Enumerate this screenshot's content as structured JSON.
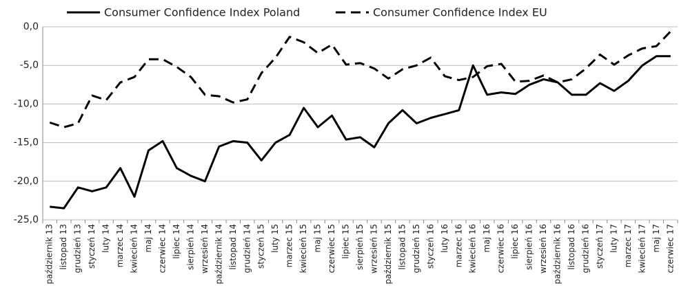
{
  "chart_data": {
    "type": "line",
    "categories": [
      "październik 13",
      "listopad 13",
      "grudzień 13",
      "styczeń 14",
      "luty 14",
      "marzec 14",
      "kwiecień 14",
      "maj 14",
      "czerwiec 14",
      "lipiec 14",
      "sierpień 14",
      "wrzesień 14",
      "październik 14",
      "listopad 14",
      "grudzień 14",
      "styczeń 15",
      "luty 15",
      "marzec 15",
      "kwiecień 15",
      "maj 15",
      "czerwiec 15",
      "lipiec 15",
      "sierpień 15",
      "wrzesień 15",
      "październik 15",
      "listopad 15",
      "grudzień 15",
      "styczeń 16",
      "luty 16",
      "marzec 16",
      "kwiecień 16",
      "maj 16",
      "czerwiec 16",
      "lipiec 16",
      "sierpień 16",
      "wrzesień 16",
      "październik 16",
      "listopad 16",
      "grudzień 16",
      "styczeń 17",
      "luty 17",
      "marzec 17",
      "kwiecień 17",
      "maj 17",
      "czerwiec 17"
    ],
    "series": [
      {
        "name": "Consumer Confidence Index Poland",
        "color": "#000000",
        "line_style": "solid",
        "values": [
          -23.3,
          -23.5,
          -20.8,
          -21.3,
          -20.8,
          -18.3,
          -22.0,
          -16.0,
          -14.8,
          -18.3,
          -19.3,
          -20.0,
          -15.5,
          -14.8,
          -15.0,
          -17.3,
          -15.0,
          -14.0,
          -10.5,
          -13.0,
          -11.5,
          -14.6,
          -14.3,
          -15.6,
          -12.5,
          -10.8,
          -12.5,
          -11.8,
          -11.3,
          -10.8,
          -5.0,
          -8.8,
          -8.5,
          -8.7,
          -7.5,
          -6.8,
          -7.2,
          -8.8,
          -8.8,
          -7.3,
          -8.3,
          -7.0,
          -5.0,
          -3.8,
          -3.8
        ]
      },
      {
        "name": "Consumer Confidence Index EU",
        "color": "#000000",
        "line_style": "dashed",
        "values": [
          -12.4,
          -13.0,
          -12.5,
          -8.9,
          -9.5,
          -7.2,
          -6.5,
          -4.2,
          -4.2,
          -5.2,
          -6.5,
          -8.8,
          -9.0,
          -9.8,
          -9.4,
          -6.0,
          -4.0,
          -1.3,
          -2.0,
          -3.4,
          -2.3,
          -4.9,
          -4.7,
          -5.4,
          -6.7,
          -5.5,
          -5.0,
          -4.0,
          -6.4,
          -6.9,
          -6.5,
          -5.1,
          -4.8,
          -7.1,
          -7.0,
          -6.3,
          -7.2,
          -6.8,
          -5.4,
          -3.6,
          -4.9,
          -3.7,
          -2.8,
          -2.5,
          -0.6
        ]
      }
    ],
    "ylim": [
      -25,
      0
    ],
    "yticks": [
      {
        "value": 0,
        "label": "0,0"
      },
      {
        "value": -5,
        "label": "-5,0"
      },
      {
        "value": -10,
        "label": "-10,0"
      },
      {
        "value": -15,
        "label": "-15,0"
      },
      {
        "value": -20,
        "label": "-20,0"
      },
      {
        "value": -25,
        "label": "-25,0"
      }
    ],
    "grid": true,
    "legend": "top"
  }
}
